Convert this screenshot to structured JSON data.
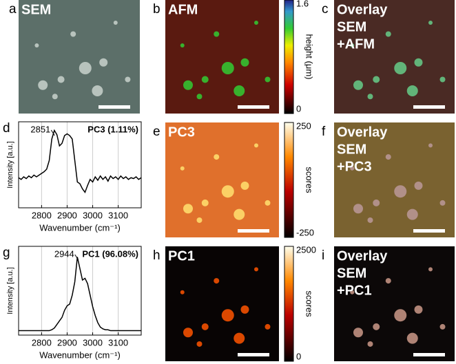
{
  "panels": {
    "a": {
      "letter": "a",
      "title": "SEM"
    },
    "b": {
      "letter": "b",
      "title": "AFM",
      "colorbar": {
        "max": "1.6",
        "min": "0",
        "label": "height (μm)"
      }
    },
    "c": {
      "letter": "c",
      "title": [
        "Overlay",
        "SEM",
        "+AFM"
      ]
    },
    "e": {
      "letter": "e",
      "title": "PC3",
      "colorbar": {
        "max": "250",
        "min": "-250",
        "label": "scores"
      }
    },
    "f": {
      "letter": "f",
      "title": [
        "Overlay",
        "SEM",
        "+PC3"
      ]
    },
    "h": {
      "letter": "h",
      "title": "PC1",
      "colorbar": {
        "max": "2500",
        "min": "0",
        "label": "scores"
      }
    },
    "i": {
      "letter": "i",
      "title": [
        "Overlay",
        "SEM",
        "+PC1"
      ]
    }
  },
  "chart_data": [
    {
      "type": "line",
      "letter": "d",
      "label": "PC3 (1.11%)",
      "annotation_x": 2851,
      "xlabel": "Wavenumber (cm⁻¹)",
      "ylabel": "Intensity [a.u.]",
      "color": "#000000",
      "grid": true,
      "x": [
        2710,
        2720,
        2730,
        2740,
        2750,
        2760,
        2770,
        2780,
        2790,
        2800,
        2810,
        2820,
        2830,
        2840,
        2850,
        2860,
        2870,
        2880,
        2890,
        2900,
        2910,
        2920,
        2930,
        2940,
        2950,
        2960,
        2970,
        2980,
        2990,
        3000,
        3010,
        3020,
        3030,
        3040,
        3050,
        3060,
        3070,
        3080,
        3090,
        3100,
        3110,
        3120,
        3130,
        3140,
        3150,
        3160,
        3170,
        3180,
        3190
      ],
      "values": [
        0.35,
        0.33,
        0.36,
        0.34,
        0.37,
        0.35,
        0.38,
        0.36,
        0.38,
        0.4,
        0.42,
        0.45,
        0.55,
        0.8,
        0.9,
        0.85,
        0.72,
        0.75,
        0.84,
        0.86,
        0.84,
        0.8,
        0.55,
        0.3,
        0.28,
        0.22,
        0.18,
        0.26,
        0.33,
        0.3,
        0.36,
        0.32,
        0.37,
        0.33,
        0.36,
        0.31,
        0.37,
        0.34,
        0.36,
        0.33,
        0.37,
        0.34,
        0.36,
        0.33,
        0.35,
        0.34,
        0.36,
        0.33,
        0.35
      ],
      "xlim": [
        2710,
        3190
      ],
      "ylim": [
        0,
        1
      ],
      "xticks": [
        2800,
        2900,
        3000,
        3100
      ]
    },
    {
      "type": "line",
      "letter": "g",
      "label": "PC1 (96.08%)",
      "annotation_x": 2944,
      "xlabel": "Wavenumber (cm⁻¹)",
      "ylabel": "Intensity [a.u.]",
      "color": "#000000",
      "grid": true,
      "x": [
        2710,
        2720,
        2730,
        2740,
        2750,
        2760,
        2770,
        2780,
        2790,
        2800,
        2810,
        2820,
        2830,
        2840,
        2850,
        2860,
        2870,
        2880,
        2890,
        2900,
        2910,
        2920,
        2930,
        2940,
        2950,
        2960,
        2970,
        2980,
        2990,
        3000,
        3010,
        3020,
        3030,
        3040,
        3050,
        3060,
        3070,
        3080,
        3090,
        3100,
        3110,
        3120,
        3130,
        3140,
        3150,
        3160,
        3170,
        3180,
        3190
      ],
      "values": [
        0.05,
        0.05,
        0.05,
        0.05,
        0.05,
        0.05,
        0.05,
        0.05,
        0.05,
        0.05,
        0.05,
        0.05,
        0.05,
        0.06,
        0.08,
        0.12,
        0.16,
        0.2,
        0.28,
        0.33,
        0.35,
        0.45,
        0.6,
        0.88,
        0.75,
        0.62,
        0.64,
        0.58,
        0.45,
        0.32,
        0.22,
        0.14,
        0.09,
        0.07,
        0.06,
        0.06,
        0.05,
        0.05,
        0.05,
        0.05,
        0.05,
        0.05,
        0.05,
        0.05,
        0.05,
        0.05,
        0.05,
        0.05,
        0.05
      ],
      "xlim": [
        2710,
        3190
      ],
      "ylim": [
        0,
        1
      ],
      "xticks": [
        2800,
        2900,
        3000,
        3100
      ]
    }
  ]
}
